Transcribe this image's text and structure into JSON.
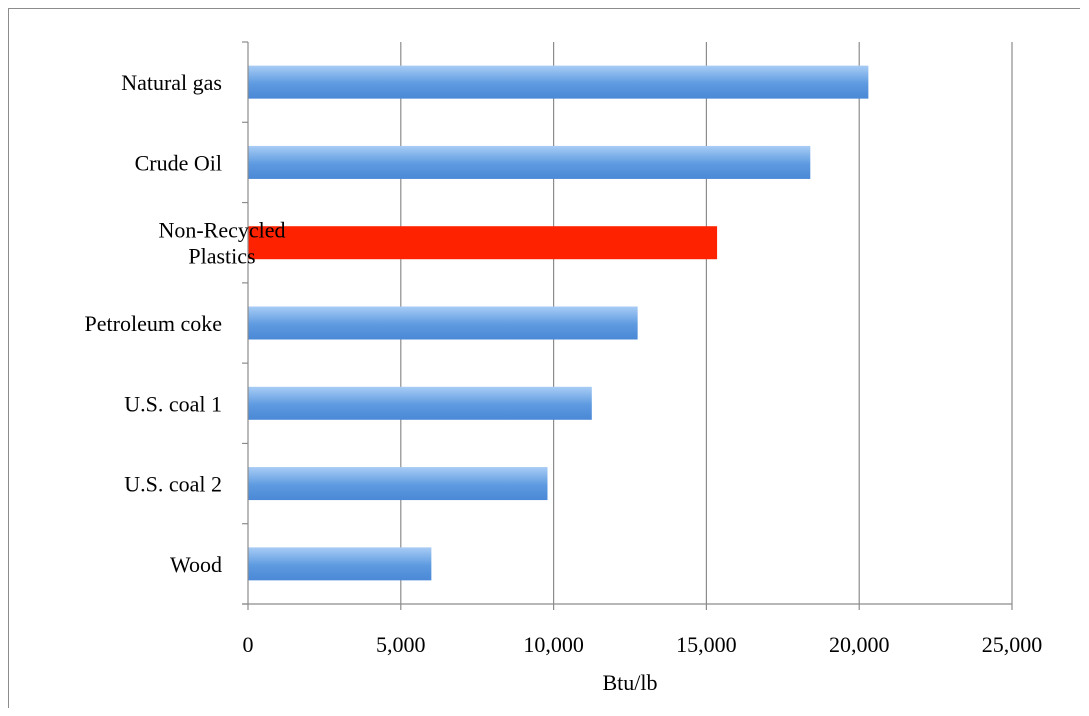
{
  "chart_data": {
    "type": "bar",
    "orientation": "horizontal",
    "categories": [
      [
        "Natural gas"
      ],
      [
        "Crude Oil"
      ],
      [
        "Non-Recycled",
        "Plastics"
      ],
      [
        "Petroleum coke"
      ],
      [
        "U.S. coal 1"
      ],
      [
        "U.S. coal 2"
      ],
      [
        "Wood"
      ]
    ],
    "values": [
      20300,
      18400,
      15350,
      12750,
      11250,
      9800,
      6000
    ],
    "highlight_index": 2,
    "xlabel": "Btu/lb",
    "ylabel": "",
    "xlim": [
      0,
      25000
    ],
    "x_ticks": [
      0,
      5000,
      10000,
      15000,
      20000,
      25000
    ],
    "x_tick_labels": [
      "0",
      "5,000",
      "10,000",
      "15,000",
      "20,000",
      "25,000"
    ],
    "grid": "vertical",
    "legend": "none",
    "colors": {
      "bar": "#5d9ae0",
      "bar_light": "#a8ccf5",
      "bar_dark": "#4b88d6",
      "highlight": "#ff2200",
      "grid": "#8c8c8c",
      "axis": "#8c8c8c"
    }
  }
}
